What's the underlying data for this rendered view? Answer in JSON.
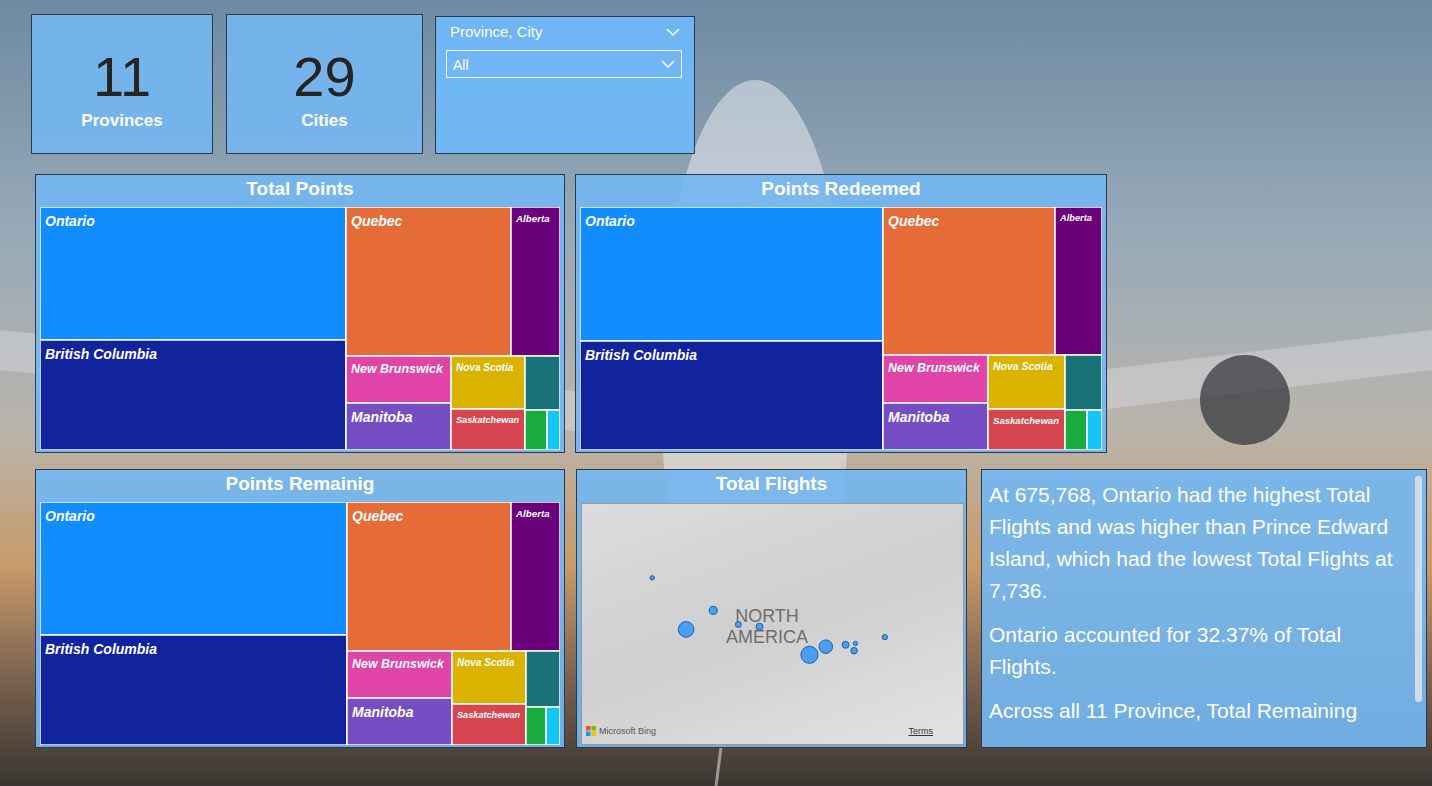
{
  "cards": [
    {
      "value": 11,
      "label": "Provinces"
    },
    {
      "value": 29,
      "label": "Cities"
    }
  ],
  "slicer": {
    "title": "Province, City",
    "selection": "All"
  },
  "chart_data": [
    {
      "type": "treemap",
      "title": "Total Points",
      "categories": [
        "Ontario",
        "British Columbia",
        "Quebec",
        "Alberta",
        "New Brunswick",
        "Manitoba",
        "Nova Scotia",
        "Saskatchewan",
        null,
        null,
        null
      ],
      "values": [
        32.2,
        26.6,
        19.4,
        5.9,
        3.9,
        3.9,
        3.1,
        2.4,
        1.5,
        0.7,
        0.4
      ],
      "colors": [
        "#118dff",
        "#12239e",
        "#e66c37",
        "#6b007b",
        "#e044a7",
        "#744ec2",
        "#d9b300",
        "#d64550",
        "#197278",
        "#1aab40",
        "#15c6f4"
      ],
      "tick_labels": false
    },
    {
      "type": "treemap",
      "title": "Points Redeemed",
      "categories": [
        "Ontario",
        "British Columbia",
        "Quebec",
        "Alberta",
        "New Brunswick",
        "Manitoba",
        "Nova Scotia",
        "Saskatchewan",
        null,
        null,
        null
      ],
      "values": [
        32.0,
        26.0,
        20.1,
        5.4,
        4.0,
        3.9,
        3.3,
        2.5,
        1.6,
        0.7,
        0.5
      ],
      "colors": [
        "#118dff",
        "#12239e",
        "#e66c37",
        "#6b007b",
        "#e044a7",
        "#744ec2",
        "#d9b300",
        "#d64550",
        "#197278",
        "#1aab40",
        "#15c6f4"
      ],
      "tick_labels": false
    },
    {
      "type": "treemap",
      "title": "Points Remainig",
      "categories": [
        "Ontario",
        "British Columbia",
        "Quebec",
        "Alberta",
        "New Brunswick",
        "Manitoba",
        "Nova Scotia",
        "Saskatchewan",
        null,
        null,
        null
      ],
      "values": [
        32.3,
        26.7,
        19.3,
        5.9,
        3.9,
        3.9,
        3.1,
        2.4,
        1.5,
        0.6,
        0.4
      ],
      "colors": [
        "#118dff",
        "#12239e",
        "#e66c37",
        "#6b007b",
        "#e044a7",
        "#744ec2",
        "#d9b300",
        "#d64550",
        "#197278",
        "#1aab40",
        "#15c6f4"
      ],
      "tick_labels": false
    },
    {
      "type": "scatter",
      "title": "Total Flights",
      "x": [
        -79.4,
        -123.1,
        -73.6,
        -113.5,
        -66.6,
        -97.1,
        -63.6,
        -104.6,
        -52.7,
        -63.1,
        -135.1
      ],
      "y": [
        43.7,
        49.3,
        45.5,
        53.5,
        45.9,
        49.9,
        44.6,
        50.4,
        47.6,
        46.2,
        60.7
      ],
      "sizes": [
        675768,
        559000,
        405000,
        123000,
        81000,
        81000,
        65000,
        50000,
        31000,
        7736,
        9000
      ],
      "xlim": [
        -160,
        -25
      ],
      "ylim": [
        24,
        77
      ],
      "tick_labels": false,
      "color": "#4a9ff5",
      "annotations": [
        "NORTH AMERICA"
      ],
      "attribution": "Microsoft Bing",
      "terms": "Terms"
    }
  ],
  "narrative": {
    "paragraphs": [
      "At 675,768, Ontario had the highest Total Flights and was higher than Prince Edward Island, which had the lowest Total Flights at 7,736.",
      "Ontario accounted for 32.37% of Total Flights.",
      "Across all 11 Province, Total Remaining"
    ]
  }
}
